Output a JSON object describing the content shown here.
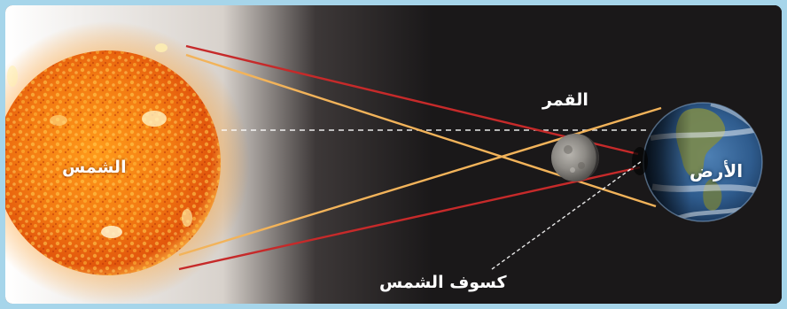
{
  "labels": {
    "sun": "الشمس",
    "moon": "القمر",
    "earth": "الأرض",
    "eclipse": "كسوف الشمس"
  },
  "colors": {
    "frame": "#a6d5ea",
    "background": "#1a1819",
    "umbra_ray": "#c62a2a",
    "penumbra_ray": "#f2b35a",
    "center_line": "#ffffff"
  }
}
